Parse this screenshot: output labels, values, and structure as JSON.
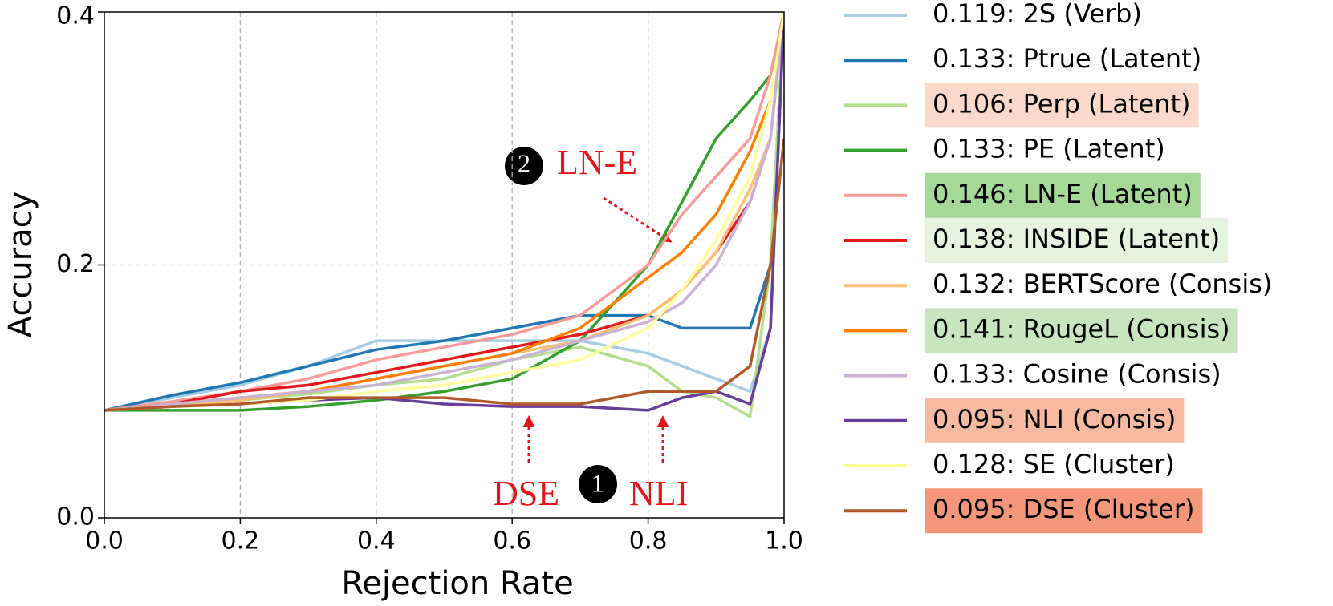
{
  "chart_data": {
    "type": "line",
    "xlabel": "Rejection Rate",
    "ylabel": "Accuracy",
    "x": [
      0,
      0.1,
      0.2,
      0.3,
      0.4,
      0.5,
      0.6,
      0.7,
      0.8,
      0.85,
      0.9,
      0.95,
      0.98,
      1.0
    ],
    "xlim": [
      0,
      1
    ],
    "ylim": [
      0,
      0.4
    ],
    "xticks": [
      {
        "value": 0,
        "label": "0.0"
      },
      0.2,
      0.4,
      0.6,
      0.8,
      {
        "value": 1,
        "label": "1.0"
      }
    ],
    "yticks": [
      {
        "value": 0,
        "label": "0.0"
      },
      0.2,
      0.4
    ],
    "grid": true,
    "series": [
      {
        "name": "0.119: 2S (Verb)",
        "color": "#a6cee3",
        "values": [
          0.085,
          0.095,
          0.105,
          0.12,
          0.14,
          0.14,
          0.14,
          0.14,
          0.13,
          0.12,
          0.11,
          0.1,
          0.15,
          0.4
        ]
      },
      {
        "name": "0.133: Ptrue (Latent)",
        "color": "#1f78b4",
        "values": [
          0.085,
          0.097,
          0.107,
          0.12,
          0.133,
          0.14,
          0.15,
          0.16,
          0.16,
          0.15,
          0.15,
          0.15,
          0.2,
          0.4
        ]
      },
      {
        "name": "0.106: Perp (Latent)",
        "color": "#b2df8a",
        "highlight": "#fad9ca",
        "values": [
          0.085,
          0.09,
          0.093,
          0.098,
          0.105,
          0.11,
          0.125,
          0.135,
          0.12,
          0.1,
          0.095,
          0.08,
          0.2,
          0.4
        ]
      },
      {
        "name": "0.133: PE (Latent)",
        "color": "#33a02c",
        "values": [
          0.085,
          0.085,
          0.085,
          0.088,
          0.093,
          0.1,
          0.11,
          0.14,
          0.2,
          0.25,
          0.3,
          0.33,
          0.35,
          0.4
        ]
      },
      {
        "name": "0.146: LN-E (Latent)",
        "color": "#fb9a99",
        "highlight": "#a6d997",
        "values": [
          0.085,
          0.092,
          0.1,
          0.11,
          0.125,
          0.135,
          0.145,
          0.16,
          0.2,
          0.24,
          0.27,
          0.3,
          0.35,
          0.4
        ]
      },
      {
        "name": "0.138: INSIDE (Latent)",
        "color": "#e31a1c",
        "highlight": "#e5f3df",
        "values": [
          0.085,
          0.09,
          0.1,
          0.105,
          0.115,
          0.125,
          0.135,
          0.145,
          0.16,
          0.18,
          0.21,
          0.25,
          0.3,
          0.4
        ]
      },
      {
        "name": "0.132: BERTScore (Consis)",
        "color": "#fdbf6f",
        "values": [
          0.085,
          0.088,
          0.093,
          0.1,
          0.11,
          0.12,
          0.13,
          0.14,
          0.16,
          0.18,
          0.21,
          0.26,
          0.3,
          0.4
        ]
      },
      {
        "name": "0.141: RougeL (Consis)",
        "color": "#ff7f00",
        "highlight": "#c8e6bd",
        "values": [
          0.085,
          0.09,
          0.095,
          0.1,
          0.11,
          0.12,
          0.13,
          0.15,
          0.19,
          0.21,
          0.24,
          0.29,
          0.33,
          0.4
        ]
      },
      {
        "name": "0.133: Cosine (Consis)",
        "color": "#cab2d6",
        "values": [
          0.085,
          0.09,
          0.095,
          0.1,
          0.105,
          0.115,
          0.125,
          0.14,
          0.155,
          0.17,
          0.2,
          0.25,
          0.3,
          0.4
        ]
      },
      {
        "name": "0.095: NLI (Consis)",
        "color": "#6a3d9a",
        "highlight": "#f7b9a0",
        "values": [
          0.085,
          0.088,
          0.09,
          0.093,
          0.095,
          0.09,
          0.088,
          0.088,
          0.085,
          0.095,
          0.1,
          0.09,
          0.15,
          0.4
        ]
      },
      {
        "name": "0.128: SE (Cluster)",
        "color": "#ffff99",
        "values": [
          0.085,
          0.088,
          0.09,
          0.093,
          0.1,
          0.105,
          0.115,
          0.125,
          0.15,
          0.18,
          0.22,
          0.27,
          0.33,
          0.4
        ]
      },
      {
        "name": "0.095: DSE (Cluster)",
        "color": "#b15928",
        "highlight": "#f4967a",
        "values": [
          0.085,
          0.088,
          0.09,
          0.095,
          0.095,
          0.095,
          0.09,
          0.09,
          0.1,
          0.1,
          0.1,
          0.12,
          0.2,
          0.3
        ]
      }
    ],
    "annotations": [
      "2",
      "LN-E",
      "DSE",
      "1",
      "NLI"
    ]
  }
}
